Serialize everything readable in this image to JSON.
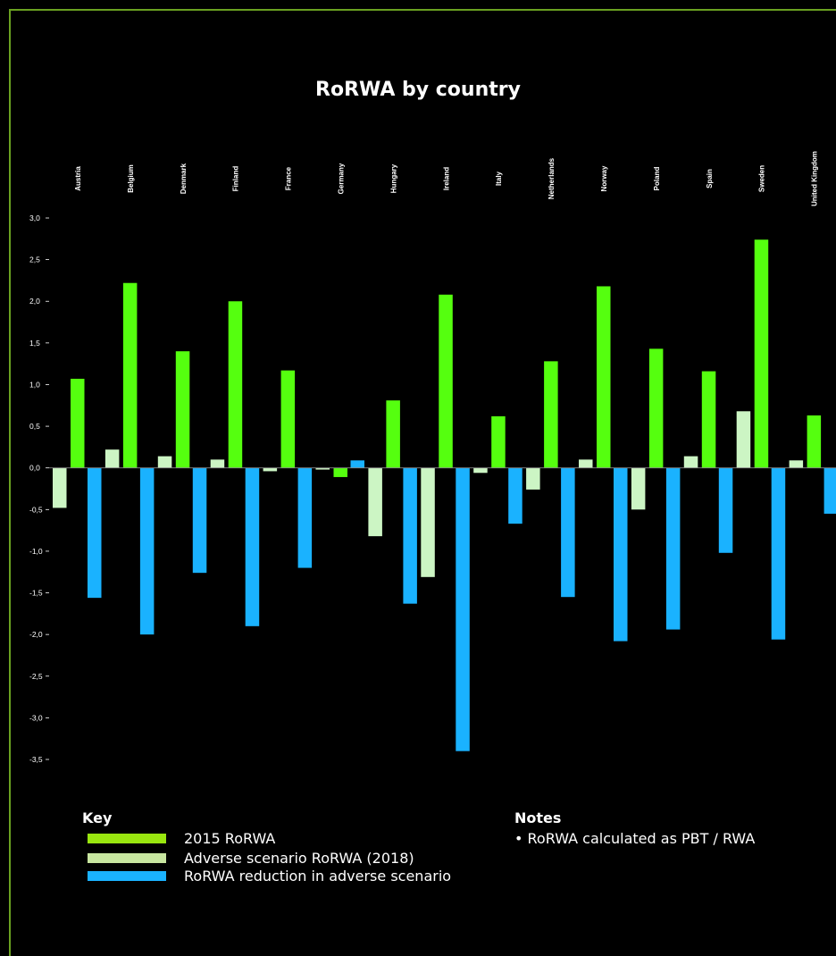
{
  "title": "RoRWA by country",
  "key": {
    "title": "Key",
    "items": [
      {
        "label": "2015 RoRWA",
        "color": "#99e60f"
      },
      {
        "label": "Adverse scenario RoRWA (2018)",
        "color": "#c8e6a0"
      },
      {
        "label": "RoRWA reduction in adverse scenario",
        "color": "#1ab2ff"
      }
    ]
  },
  "notes": {
    "title": "Notes",
    "items": [
      "RoRWA calculated as PBT / RWA"
    ]
  },
  "chart_data": {
    "type": "bar",
    "title": "RoRWA by country",
    "categories": [
      "Austria",
      "Belgium",
      "Denmark",
      "Finland",
      "France",
      "Germany",
      "Hungary",
      "Ireland",
      "Italy",
      "Netherlands",
      "Norway",
      "Poland",
      "Spain",
      "Sweden",
      "United Kingdom"
    ],
    "ylim": [
      -3.5,
      3.0
    ],
    "yticks": [
      3.0,
      2.5,
      2.0,
      1.5,
      1.0,
      0.5,
      0.0,
      -0.5,
      -1.0,
      -1.5,
      -2.0,
      -2.5,
      -3.0,
      -3.5
    ],
    "ytick_labels": [
      "3,0",
      "2,5",
      "2,0",
      "1,5",
      "1,0",
      "0,5",
      "0,0",
      "-0,5",
      "-1,0",
      "-1,5",
      "-2,0",
      "-2,5",
      "-3,0",
      "-3,5"
    ],
    "grid": false,
    "category_labels_position": "top",
    "series": [
      {
        "name": "Adverse scenario RoRWA (2018)",
        "color": "#ccf5c4",
        "values": [
          -0.48,
          0.22,
          0.14,
          0.1,
          -0.04,
          -0.02,
          -0.82,
          -1.31,
          -0.06,
          -0.26,
          0.1,
          -0.5,
          0.14,
          0.68,
          0.09
        ]
      },
      {
        "name": "RoRWA reduction in adverse scenario",
        "color": "#1ab2ff",
        "values": [
          -1.56,
          -2.0,
          -1.26,
          -1.9,
          -1.2,
          0.09,
          -1.63,
          -3.4,
          -0.67,
          -1.55,
          -2.08,
          -1.94,
          -1.02,
          -2.06,
          -0.55
        ]
      },
      {
        "name": "2015 RoRWA",
        "color": "#55ff0f",
        "values": [
          1.07,
          2.22,
          1.4,
          2.0,
          1.17,
          -0.11,
          0.81,
          2.08,
          0.62,
          1.28,
          2.18,
          1.43,
          1.16,
          2.74,
          0.63
        ]
      }
    ]
  }
}
